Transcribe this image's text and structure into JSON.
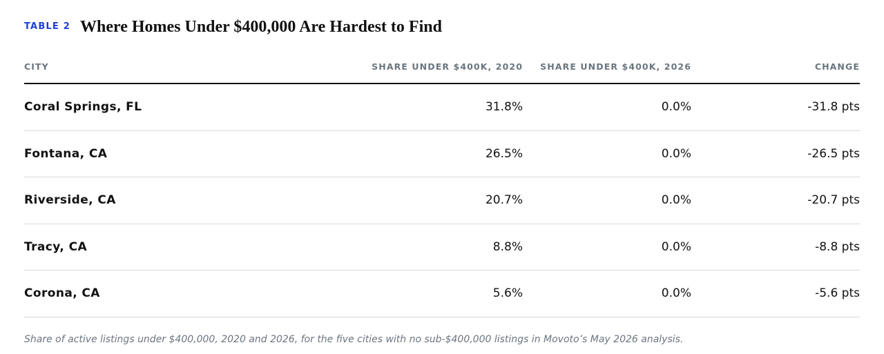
{
  "header": {
    "tag": "TABLE 2",
    "title": "Where Homes Under $400,000 Are Hardest to Find"
  },
  "table": {
    "columns": [
      "CITY",
      "SHARE UNDER $400K, 2020",
      "SHARE UNDER $400K, 2026",
      "CHANGE"
    ],
    "rows": [
      [
        "Coral Springs, FL",
        "31.8%",
        "0.0%",
        "-31.8 pts"
      ],
      [
        "Fontana, CA",
        "26.5%",
        "0.0%",
        "-26.5 pts"
      ],
      [
        "Riverside, CA",
        "20.7%",
        "0.0%",
        "-20.7 pts"
      ],
      [
        "Tracy, CA",
        "8.8%",
        "0.0%",
        "-8.8 pts"
      ],
      [
        "Corona, CA",
        "5.6%",
        "0.0%",
        "-5.6 pts"
      ]
    ]
  },
  "caption": "Share of active listings under $400,000, 2020 and 2026, for the five cities with no sub-$400,000 listings in Movoto’s May 2026 analysis.",
  "colors": {
    "tag": "#1f3fd6",
    "header_text": "#6b7580",
    "rule": "#111111",
    "row_divider": "#d8d8d8"
  }
}
